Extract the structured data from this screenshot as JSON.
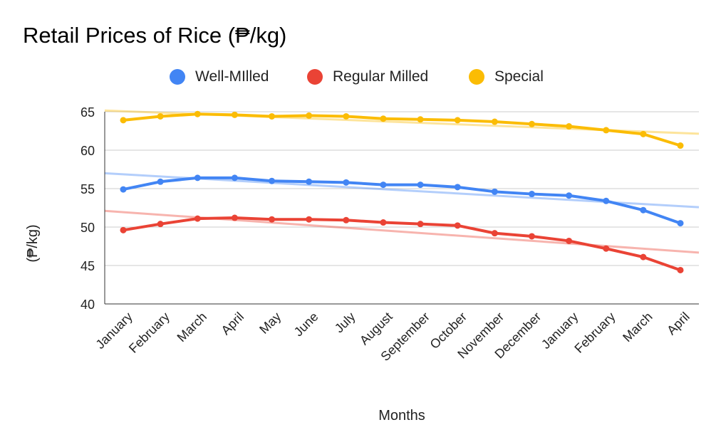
{
  "chart_data": {
    "type": "line",
    "title": "Retail Prices of Rice (₱/kg)",
    "xlabel": "Months",
    "ylabel": "(₱/kg)",
    "ylim": [
      40,
      65
    ],
    "yticks": [
      40,
      45,
      50,
      55,
      60,
      65
    ],
    "grid": true,
    "legend_position": "top",
    "trendlines": true,
    "categories": [
      "January",
      "February",
      "March",
      "April",
      "May",
      "June",
      "July",
      "August",
      "September",
      "October",
      "November",
      "December",
      "January",
      "February",
      "March",
      "April"
    ],
    "series": [
      {
        "name": "Well-MIlled",
        "color": "#4285f4",
        "values": [
          54.9,
          55.9,
          56.4,
          56.4,
          56.0,
          55.9,
          55.8,
          55.5,
          55.5,
          55.2,
          54.6,
          54.3,
          54.1,
          53.4,
          52.2,
          50.5
        ]
      },
      {
        "name": "Regular Milled",
        "color": "#ea4335",
        "values": [
          49.6,
          50.4,
          51.1,
          51.2,
          51.0,
          51.0,
          50.9,
          50.6,
          50.4,
          50.2,
          49.2,
          48.8,
          48.2,
          47.2,
          46.1,
          44.4
        ]
      },
      {
        "name": "Special",
        "color": "#fbbc04",
        "values": [
          63.9,
          64.4,
          64.7,
          64.6,
          64.4,
          64.5,
          64.4,
          64.1,
          64.0,
          63.9,
          63.7,
          63.4,
          63.1,
          62.6,
          62.1,
          60.6
        ]
      }
    ]
  }
}
